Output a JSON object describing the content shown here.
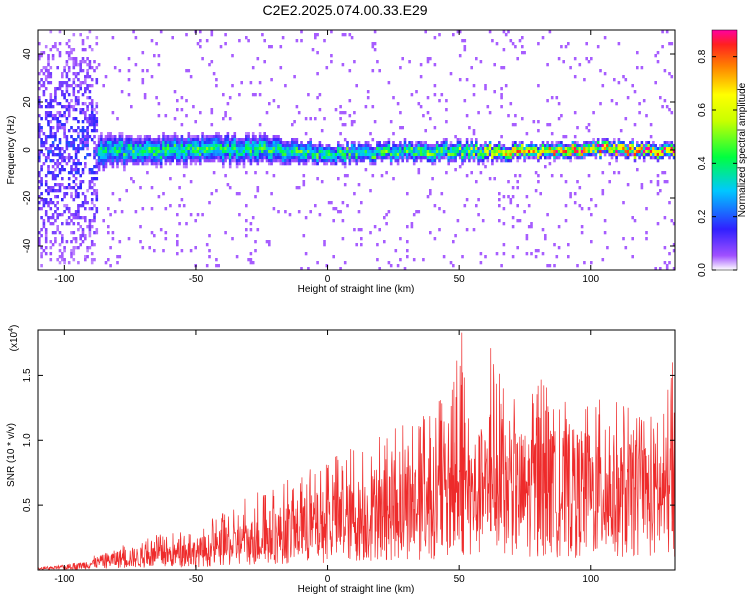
{
  "title": "C2E2.2025.074.00.33.E29",
  "colors": {
    "line": "#ee2b2b",
    "axes": "#000000",
    "background": "#ffffff"
  },
  "chart_data": [
    {
      "type": "heatmap",
      "title": "C2E2.2025.074.00.33.E29",
      "xlabel": "Height of straight line (km)",
      "ylabel": "Frequency (Hz)",
      "xlim": [
        -110,
        132
      ],
      "ylim": [
        -50,
        50
      ],
      "x_ticks": [
        -100,
        -50,
        0,
        50,
        100
      ],
      "x_tick_labels": [
        "-100",
        "-50",
        "0",
        "50",
        "100"
      ],
      "y_ticks": [
        -40,
        -20,
        0,
        20,
        40
      ],
      "y_tick_labels": [
        "-40",
        "-20",
        "0",
        "20",
        "40"
      ],
      "grid": false,
      "colorbar": {
        "label": "Normalized spectral amplitude",
        "range": [
          0,
          0.9
        ],
        "ticks": [
          0.0,
          0.2,
          0.4,
          0.6,
          0.8
        ],
        "tick_labels": [
          "0.0",
          "0.2",
          "0.4",
          "0.6",
          "0.8"
        ],
        "colormap": "rainbow (white-purple-blue-cyan-green-yellow-red-magenta)"
      },
      "ridge": {
        "description": "energy concentrated near 0 Hz along the height axis",
        "x": [
          -110,
          -100,
          -90,
          -75,
          -50,
          -25,
          0,
          25,
          50,
          75,
          100,
          132
        ],
        "center_freq": [
          0,
          0,
          0,
          0,
          1,
          1,
          -1,
          0,
          0,
          0,
          1,
          0
        ],
        "half_width": [
          48,
          48,
          8,
          6,
          6,
          6,
          4,
          4,
          4,
          3,
          3,
          3
        ],
        "peak_amplitude": [
          0.1,
          0.15,
          0.35,
          0.45,
          0.45,
          0.45,
          0.5,
          0.5,
          0.55,
          0.85,
          0.88,
          0.88
        ]
      }
    },
    {
      "type": "line",
      "xlabel": "Height of straight line (km)",
      "ylabel": "SNR (10 * v/v)",
      "y_scale_label": "(x10",
      "y_scale_exponent": "4",
      "xlim": [
        -110,
        132
      ],
      "ylim": [
        0,
        1.85
      ],
      "y_unit_multiplier": 10000,
      "x_ticks": [
        -100,
        -50,
        0,
        50,
        100
      ],
      "x_tick_labels": [
        "-100",
        "-50",
        "0",
        "50",
        "100"
      ],
      "y_ticks": [
        0.5,
        1.0,
        1.5
      ],
      "y_tick_labels": [
        "0.5",
        "1.0",
        "1.5"
      ],
      "grid": false,
      "series": [
        {
          "envelope_x": [
            -110,
            -100,
            -95,
            -90,
            -85,
            -80,
            -75,
            -70,
            -65,
            -60,
            -55,
            -50,
            -45,
            -40,
            -35,
            -30,
            -25,
            -20,
            -15,
            -10,
            -5,
            0,
            5,
            10,
            15,
            20,
            25,
            30,
            35,
            40,
            45,
            50,
            55,
            60,
            65,
            70,
            75,
            80,
            85,
            90,
            95,
            100,
            105,
            110,
            115,
            120,
            125,
            132
          ],
          "envelope_max": [
            0.02,
            0.04,
            0.06,
            0.1,
            0.14,
            0.2,
            0.22,
            0.25,
            0.28,
            0.28,
            0.3,
            0.33,
            0.38,
            0.45,
            0.5,
            0.58,
            0.62,
            0.7,
            0.75,
            0.78,
            0.82,
            0.85,
            0.9,
            0.95,
            1.0,
            1.05,
            1.1,
            1.15,
            1.25,
            1.3,
            1.4,
            1.85,
            1.2,
            1.5,
            1.72,
            1.3,
            1.4,
            1.55,
            1.35,
            1.3,
            1.3,
            1.35,
            1.3,
            1.3,
            1.25,
            1.2,
            1.2,
            1.6
          ],
          "envelope_mean": [
            0.01,
            0.02,
            0.03,
            0.05,
            0.07,
            0.09,
            0.1,
            0.1,
            0.11,
            0.12,
            0.13,
            0.14,
            0.16,
            0.18,
            0.2,
            0.22,
            0.25,
            0.28,
            0.3,
            0.32,
            0.34,
            0.36,
            0.38,
            0.4,
            0.42,
            0.45,
            0.47,
            0.5,
            0.52,
            0.55,
            0.56,
            0.58,
            0.6,
            0.62,
            0.62,
            0.62,
            0.62,
            0.63,
            0.62,
            0.62,
            0.62,
            0.6,
            0.6,
            0.6,
            0.6,
            0.58,
            0.58,
            0.6
          ],
          "peaks": [
            {
              "x": 51,
              "y": 1.83
            },
            {
              "x": 62,
              "y": 1.71
            },
            {
              "x": 131,
              "y": 1.6
            },
            {
              "x": 48,
              "y": 1.45
            },
            {
              "x": 80,
              "y": 1.42
            }
          ]
        }
      ]
    }
  ]
}
